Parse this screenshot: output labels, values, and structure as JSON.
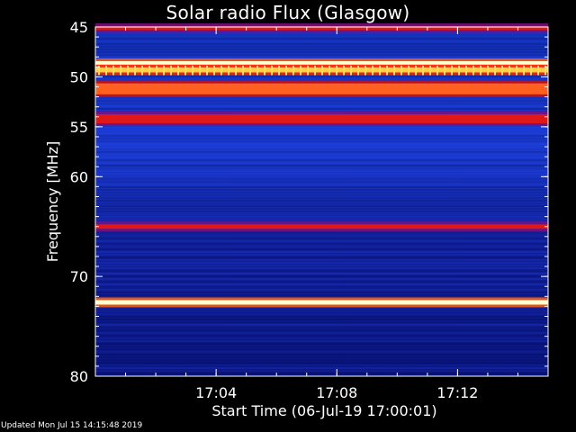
{
  "chart_data": {
    "type": "heatmap",
    "title": "Solar radio Flux (Glasgow)",
    "xlabel": "Start Time (06-Jul-19 17:00:01)",
    "ylabel": "Frequency [MHz]",
    "x_range_minutes": [
      0,
      15
    ],
    "x_ticks": [
      {
        "minute": 4,
        "label": "17:04"
      },
      {
        "minute": 8,
        "label": "17:08"
      },
      {
        "minute": 12,
        "label": "17:12"
      }
    ],
    "y_range_mhz": [
      45,
      80
    ],
    "y_ticks": [
      {
        "mhz": 45,
        "label": "45"
      },
      {
        "mhz": 50,
        "label": "50"
      },
      {
        "mhz": 55,
        "label": "55"
      },
      {
        "mhz": 60,
        "label": "60"
      },
      {
        "mhz": 70,
        "label": "70"
      },
      {
        "mhz": 80,
        "label": "80"
      }
    ],
    "bands_mhz": [
      {
        "mhz": 45.1,
        "width": 0.4,
        "intensity": "red"
      },
      {
        "mhz": 48.6,
        "width": 0.35,
        "intensity": "white"
      },
      {
        "mhz": 49.3,
        "width": 0.5,
        "intensity": "yellow-dashed"
      },
      {
        "mhz": 51.2,
        "width": 1.1,
        "intensity": "orange"
      },
      {
        "mhz": 54.2,
        "width": 0.9,
        "intensity": "red"
      },
      {
        "mhz": 65.0,
        "width": 0.45,
        "intensity": "red"
      },
      {
        "mhz": 72.6,
        "width": 0.45,
        "intensity": "white"
      }
    ],
    "colors": {
      "background": "#000000",
      "low": "#0a1a8c",
      "mid": "#5a1e9a",
      "high": "#ff3020",
      "peak": "#ffffa0"
    }
  },
  "footer": "Updated Mon Jul 15 14:15:48 2019"
}
